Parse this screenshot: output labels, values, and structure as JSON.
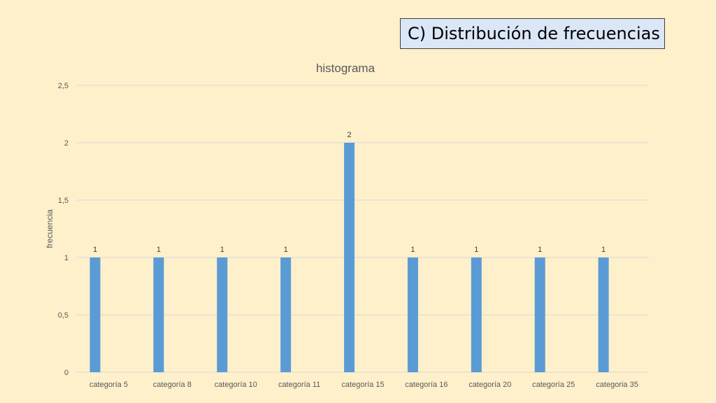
{
  "slide": {
    "title": "C) Distribución de frecuencias"
  },
  "colors": {
    "background": "#fdf0cb",
    "bar": "#5b9bd5",
    "gridline": "#d9d9d9",
    "title_box": "#dbe6f7"
  },
  "chart_data": {
    "type": "bar",
    "title": "histograma",
    "xlabel": "",
    "ylabel": "frecuencia",
    "categories": [
      "categoría 5",
      "categoría 8",
      "categoría 10",
      "categoría 11",
      "categoría 15",
      "categoría 16",
      "categoría 20",
      "categoría 25",
      "categoria 35"
    ],
    "values": [
      1,
      1,
      1,
      1,
      2,
      1,
      1,
      1,
      1
    ],
    "data_labels": [
      "1",
      "1",
      "1",
      "1",
      "2",
      "1",
      "1",
      "1",
      "1"
    ],
    "ylim": [
      0,
      2.5
    ],
    "yticks": [
      0,
      0.5,
      1,
      1.5,
      2,
      2.5
    ],
    "ytick_labels": [
      "0",
      "0,5",
      "1",
      "1,5",
      "2",
      "2,5"
    ],
    "grid": true,
    "legend": "none"
  }
}
